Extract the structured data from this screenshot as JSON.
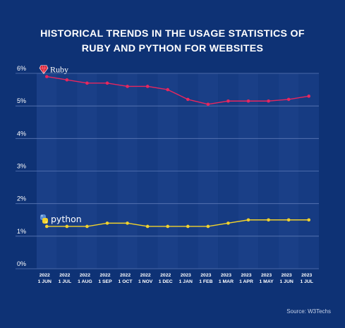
{
  "chart_data": {
    "type": "line",
    "title": [
      "HISTORICAL TRENDS IN THE USAGE STATISTICS OF",
      "RUBY AND PYTHON FOR WEBSITES"
    ],
    "categories": [
      [
        "2022",
        "1 JUN"
      ],
      [
        "2022",
        "1 JUL"
      ],
      [
        "2022",
        "1 AUG"
      ],
      [
        "2022",
        "1 SEP"
      ],
      [
        "2022",
        "1 OCT"
      ],
      [
        "2022",
        "1 NOV"
      ],
      [
        "2022",
        "1 DEC"
      ],
      [
        "2023",
        "1 JAN"
      ],
      [
        "2023",
        "1 FEB"
      ],
      [
        "2023",
        "1 MAR"
      ],
      [
        "2023",
        "1 APR"
      ],
      [
        "2023",
        "1 MAY"
      ],
      [
        "2023",
        "1 JUN"
      ],
      [
        "2023",
        "1 JUL"
      ]
    ],
    "series": [
      {
        "name": "Ruby",
        "color": "#e8265e",
        "icon": "ruby-gem-icon",
        "start_index": 0,
        "values": [
          5.9,
          5.8,
          5.7,
          5.7,
          5.6,
          5.6,
          5.5,
          5.2,
          5.05,
          5.15,
          5.15,
          5.15,
          5.2,
          5.3
        ]
      },
      {
        "name": "python",
        "color": "#f2d22c",
        "icon": "python-logo-icon",
        "start_index": 0,
        "values": [
          1.3,
          1.3,
          1.3,
          1.4,
          1.4,
          1.3,
          1.3,
          1.3,
          1.3,
          1.4,
          1.5,
          1.5,
          1.5,
          1.5
        ]
      }
    ],
    "y_ticks": [
      "0%",
      "1%",
      "2%",
      "3%",
      "4%",
      "5%",
      "6%"
    ],
    "ylim": [
      0,
      6
    ],
    "ylabel": "",
    "xlabel": "",
    "grid": true,
    "legend_position": "inline-left"
  },
  "source": "Source: W3Techs",
  "colors": {
    "background": "#0e3275",
    "plot_band_a": "#1a3f87",
    "plot_band_b": "#163b82",
    "grid": "#5d7ab6",
    "text": "#ffffff"
  }
}
